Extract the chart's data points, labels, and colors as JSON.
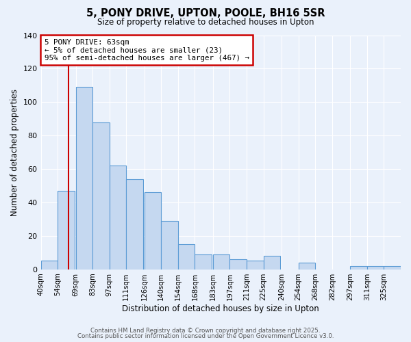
{
  "title_line1": "5, PONY DRIVE, UPTON, POOLE, BH16 5SR",
  "title_line2": "Size of property relative to detached houses in Upton",
  "xlabel": "Distribution of detached houses by size in Upton",
  "ylabel": "Number of detached properties",
  "bin_labels": [
    "40sqm",
    "54sqm",
    "69sqm",
    "83sqm",
    "97sqm",
    "111sqm",
    "126sqm",
    "140sqm",
    "154sqm",
    "168sqm",
    "183sqm",
    "197sqm",
    "211sqm",
    "225sqm",
    "240sqm",
    "254sqm",
    "268sqm",
    "282sqm",
    "297sqm",
    "311sqm",
    "325sqm"
  ],
  "bar_values": [
    5,
    47,
    109,
    88,
    62,
    54,
    46,
    29,
    15,
    9,
    9,
    6,
    5,
    8,
    0,
    4,
    0,
    0,
    2,
    2,
    2
  ],
  "bar_color": "#c5d8f0",
  "bar_edge_color": "#5b9bd5",
  "bg_color": "#eaf1fb",
  "grid_color": "#ffffff",
  "red_line_x": 63,
  "red_line_color": "#cc0000",
  "annotation_title": "5 PONY DRIVE: 63sqm",
  "annotation_line2": "← 5% of detached houses are smaller (23)",
  "annotation_line3": "95% of semi-detached houses are larger (467) →",
  "annotation_box_color": "#cc0000",
  "ylim": [
    0,
    140
  ],
  "yticks": [
    0,
    20,
    40,
    60,
    80,
    100,
    120,
    140
  ],
  "footer1": "Contains HM Land Registry data © Crown copyright and database right 2025.",
  "footer2": "Contains public sector information licensed under the Open Government Licence v3.0.",
  "bin_width": 14
}
